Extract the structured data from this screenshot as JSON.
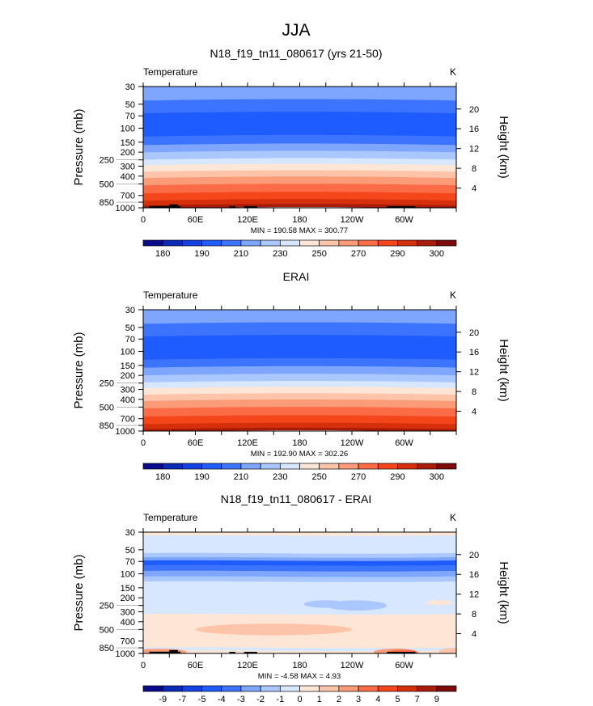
{
  "chart_data": {
    "type": "heatmap",
    "title": "JJA",
    "palette": [
      "#0a0a8c",
      "#0b2ab5",
      "#1442e0",
      "#1f5cff",
      "#3d74ff",
      "#7ea6ff",
      "#abc7ff",
      "#d7e7ff",
      "#fee6d6",
      "#fdc4aa",
      "#fc9b78",
      "#fb6c46",
      "#f4461a",
      "#d5300b",
      "#a91b0b",
      "#7d0b0b"
    ],
    "pressure_ticks": [
      30,
      50,
      70,
      100,
      150,
      200,
      250,
      300,
      400,
      500,
      700,
      850,
      1000
    ],
    "height_ticks_km": [
      4,
      8,
      12,
      16,
      20
    ],
    "lon_ticks": [
      {
        "lon": 0,
        "label": "0"
      },
      {
        "lon": 60,
        "label": "60E"
      },
      {
        "lon": 120,
        "label": "120E"
      },
      {
        "lon": 180,
        "label": "180"
      },
      {
        "lon": 240,
        "label": "120W"
      },
      {
        "lon": 300,
        "label": "60W"
      }
    ],
    "ylabel": "Pressure (mb)",
    "y2label": "Height (km)",
    "topography": [
      [
        7,
        43,
        950
      ],
      [
        30,
        40,
        905
      ],
      [
        99,
        106,
        955
      ],
      [
        116,
        131,
        955
      ],
      [
        280,
        313,
        955
      ]
    ],
    "panels": [
      {
        "title": "N18_f19_tn11_080617 (yrs 21-50)",
        "left": "Temperature",
        "right": "K",
        "minmax": "MIN = 190.58   MAX = 300.77",
        "bands": [
          [
            30,
            45,
            5
          ],
          [
            45,
            65,
            4
          ],
          [
            65,
            127,
            3
          ],
          [
            127,
            163,
            4
          ],
          [
            163,
            201,
            5
          ],
          [
            201,
            248,
            6
          ],
          [
            248,
            292,
            7
          ],
          [
            292,
            352,
            8
          ],
          [
            352,
            423,
            9
          ],
          [
            423,
            522,
            10
          ],
          [
            522,
            659,
            11
          ],
          [
            659,
            810,
            12
          ],
          [
            810,
            933,
            13
          ],
          [
            933,
            1000,
            14
          ]
        ],
        "features": [],
        "colorbar_labels": [
          "180",
          "190",
          "210",
          "230",
          "250",
          "270",
          "290",
          "300"
        ],
        "label_every": 2,
        "topo": true
      },
      {
        "title": "ERAI",
        "left": "Temperature",
        "right": "K",
        "minmax": "MIN = 192.90   MAX = 302.26",
        "bands": [
          [
            30,
            45,
            5
          ],
          [
            45,
            65,
            4
          ],
          [
            65,
            127,
            3
          ],
          [
            127,
            160,
            4
          ],
          [
            160,
            200,
            5
          ],
          [
            200,
            245,
            6
          ],
          [
            245,
            290,
            7
          ],
          [
            290,
            350,
            8
          ],
          [
            350,
            420,
            9
          ],
          [
            420,
            520,
            10
          ],
          [
            520,
            660,
            11
          ],
          [
            660,
            820,
            12
          ],
          [
            820,
            950,
            13
          ],
          [
            950,
            1000,
            14
          ]
        ],
        "features": [],
        "colorbar_labels": [
          "180",
          "190",
          "210",
          "230",
          "250",
          "270",
          "290",
          "300"
        ],
        "label_every": 2,
        "topo": false
      },
      {
        "title": "N18_f19_tn11_080617 - ERAI",
        "left": "Temperature",
        "right": "K",
        "minmax": "MIN =   -4.58   MAX =    4.93",
        "bands": [
          [
            30,
            33,
            8
          ],
          [
            33,
            55,
            7
          ],
          [
            55,
            62,
            6
          ],
          [
            62,
            68,
            5
          ],
          [
            68,
            78,
            3
          ],
          [
            78,
            92,
            4
          ],
          [
            92,
            108,
            5
          ],
          [
            108,
            125,
            6
          ],
          [
            125,
            320,
            7
          ],
          [
            320,
            840,
            8
          ],
          [
            840,
            920,
            7
          ],
          [
            920,
            1000,
            8
          ]
        ],
        "features": [
          [
            150,
            500,
            90,
            60,
            9
          ],
          [
            210,
            240,
            25,
            15,
            6
          ],
          [
            245,
            250,
            35,
            25,
            6
          ],
          [
            340,
            230,
            15,
            7,
            8
          ],
          [
            20,
            960,
            30,
            45,
            10
          ],
          [
            290,
            960,
            25,
            50,
            10
          ],
          [
            298,
            975,
            18,
            35,
            11
          ],
          [
            355,
            950,
            15,
            60,
            9
          ]
        ],
        "colorbar_labels": [
          "-9",
          "-7",
          "-5",
          "-4",
          "-3",
          "-2",
          "-1",
          "0",
          "1",
          "2",
          "3",
          "4",
          "5",
          "7",
          "9"
        ],
        "label_every": 1,
        "topo": true
      }
    ]
  }
}
